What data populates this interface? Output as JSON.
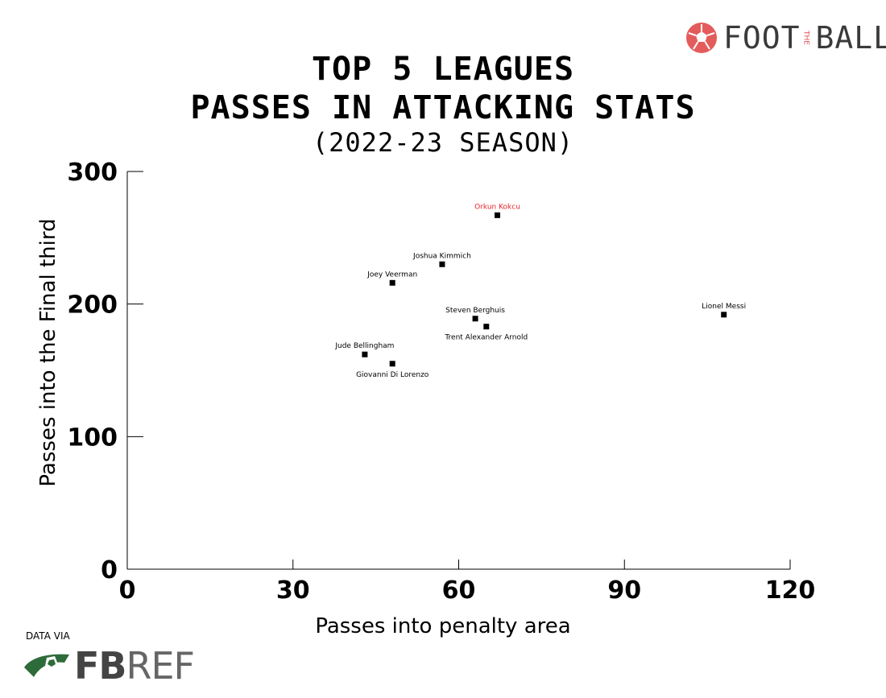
{
  "brand": {
    "foot": "FOOT",
    "the": "THE",
    "ball": "BALL"
  },
  "source": {
    "label": "DATA VIA",
    "fb": "FB",
    "ref": "REF"
  },
  "chart_data": {
    "type": "scatter",
    "title_line1": "TOP 5 LEAGUES",
    "title_line2": "PASSES IN ATTACKING STATS",
    "subtitle": "(2022-23 SEASON)",
    "xlabel": "Passes into penalty area",
    "ylabel": "Passes into the Final third",
    "xlim": [
      0,
      120
    ],
    "ylim": [
      0,
      300
    ],
    "xticks": [
      0,
      30,
      60,
      90,
      120
    ],
    "yticks": [
      0,
      100,
      200,
      300
    ],
    "highlight_color": "#e8262b",
    "points": [
      {
        "name": "Orkun Kokcu",
        "x": 67,
        "y": 267,
        "label_pos": "above",
        "highlight": true
      },
      {
        "name": "Joshua Kimmich",
        "x": 57,
        "y": 230,
        "label_pos": "above",
        "highlight": false
      },
      {
        "name": "Joey Veerman",
        "x": 48,
        "y": 216,
        "label_pos": "above",
        "highlight": false
      },
      {
        "name": "Lionel Messi",
        "x": 108,
        "y": 192,
        "label_pos": "above",
        "highlight": false
      },
      {
        "name": "Steven Berghuis",
        "x": 63,
        "y": 189,
        "label_pos": "above",
        "highlight": false
      },
      {
        "name": "Trent Alexander Arnold",
        "x": 65,
        "y": 183,
        "label_pos": "below",
        "highlight": false
      },
      {
        "name": "Jude Bellingham",
        "x": 43,
        "y": 162,
        "label_pos": "above",
        "highlight": false
      },
      {
        "name": "Giovanni Di Lorenzo",
        "x": 48,
        "y": 155,
        "label_pos": "below",
        "highlight": false
      }
    ]
  }
}
